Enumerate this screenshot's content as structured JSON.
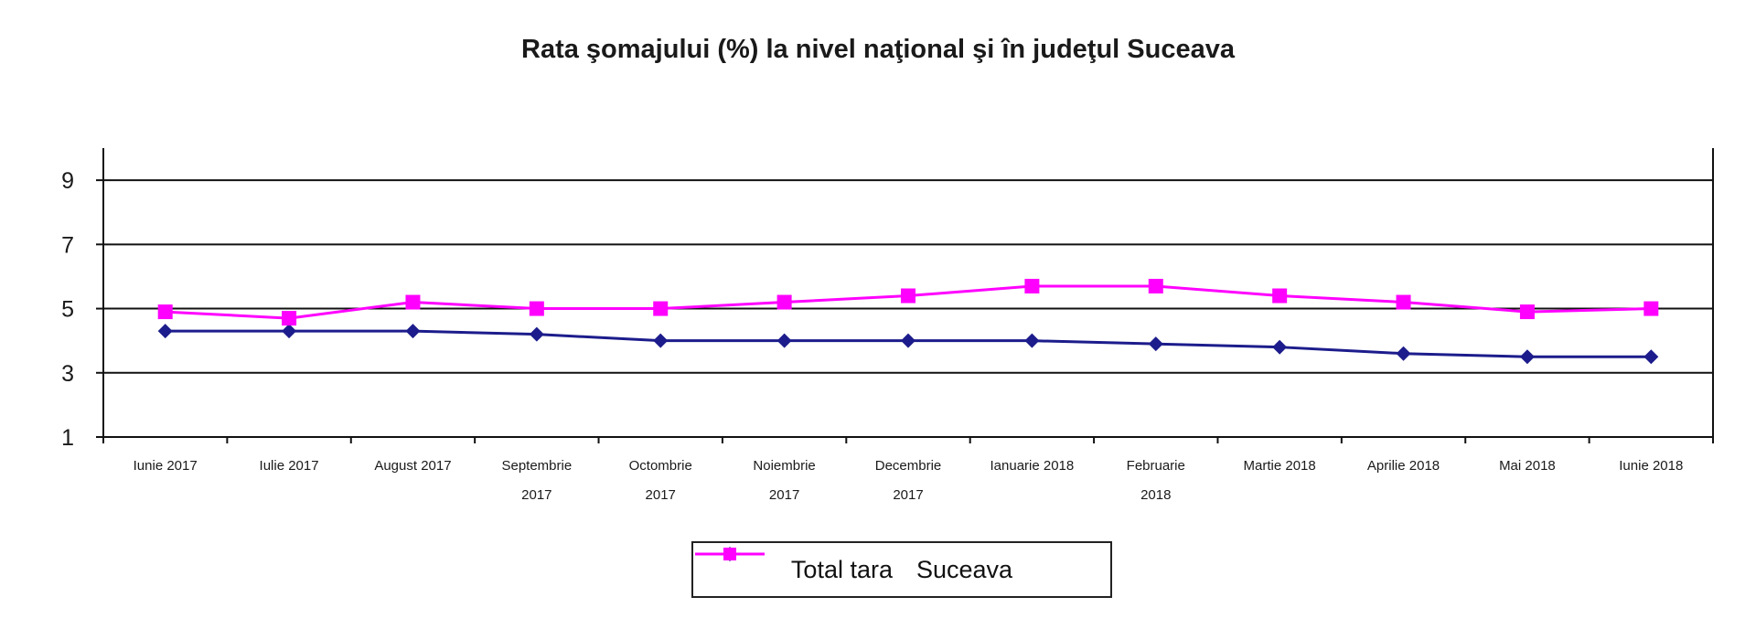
{
  "chart_data": {
    "type": "line",
    "title": "Rata şomajului (%) la nivel naţional şi în judeţul Suceava",
    "categories": [
      [
        "Iunie 2017"
      ],
      [
        "Iulie 2017"
      ],
      [
        "August 2017"
      ],
      [
        "Septembrie",
        "2017"
      ],
      [
        "Octombrie",
        "2017"
      ],
      [
        "Noiembrie",
        "2017"
      ],
      [
        "Decembrie",
        "2017"
      ],
      [
        "Ianuarie 2018"
      ],
      [
        "Februarie",
        "2018"
      ],
      [
        "Martie 2018"
      ],
      [
        "Aprilie 2018"
      ],
      [
        "Mai 2018"
      ],
      [
        "Iunie 2018"
      ]
    ],
    "ylim": [
      1,
      10
    ],
    "yticks": [
      "1",
      "3",
      "5",
      "7",
      "9"
    ],
    "grid": true,
    "legend_position": "bottom",
    "series": [
      {
        "name": "Total tara",
        "marker": "diamond",
        "color": "#1c1c8c",
        "values": [
          4.3,
          4.3,
          4.3,
          4.2,
          4.0,
          4.0,
          4.0,
          4.0,
          3.9,
          3.8,
          3.6,
          3.5,
          3.5
        ]
      },
      {
        "name": "Suceava",
        "marker": "square",
        "color": "#ff00ff",
        "values": [
          4.9,
          4.7,
          5.2,
          5.0,
          5.0,
          5.2,
          5.4,
          5.7,
          5.7,
          5.4,
          5.2,
          4.9,
          5.0
        ]
      }
    ]
  }
}
